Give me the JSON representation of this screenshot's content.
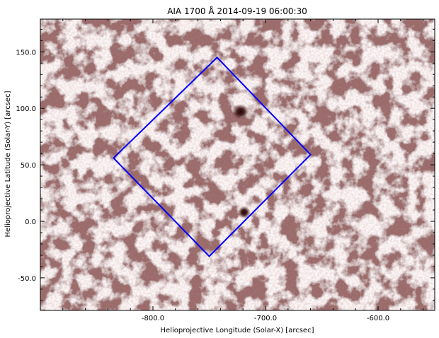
{
  "title": "AIA 1700 Å 2014-09-19 06:00:30",
  "xlabel": "Helioprojective Longitude (Solar-X) [arcsec]",
  "ylabel": "Helioprojective Latitude (Solar-Y) [arcsec]",
  "x_ticks": [
    "-800.0",
    "-700.0",
    "-600.0"
  ],
  "y_ticks": [
    "150.0",
    "100.0",
    "50.0",
    "0.0",
    "-50.0"
  ],
  "colors": {
    "image_base": "#9a6a6a",
    "bright_network": "#f4e4e4",
    "dark_spot": "#2a0a0a",
    "outline": "#0000ff"
  },
  "overlay": {
    "shape": "rotated-square",
    "vertices_arcsec": [
      [
        -743,
        145
      ],
      [
        -660,
        59
      ],
      [
        -750,
        -31
      ],
      [
        -835,
        56
      ]
    ]
  },
  "features": {
    "dark_spots_arcsec": [
      [
        -722,
        97
      ],
      [
        -719,
        8
      ]
    ]
  },
  "axes": {
    "xlim": [
      -900,
      -550
    ],
    "ylim": [
      -80,
      180
    ]
  }
}
